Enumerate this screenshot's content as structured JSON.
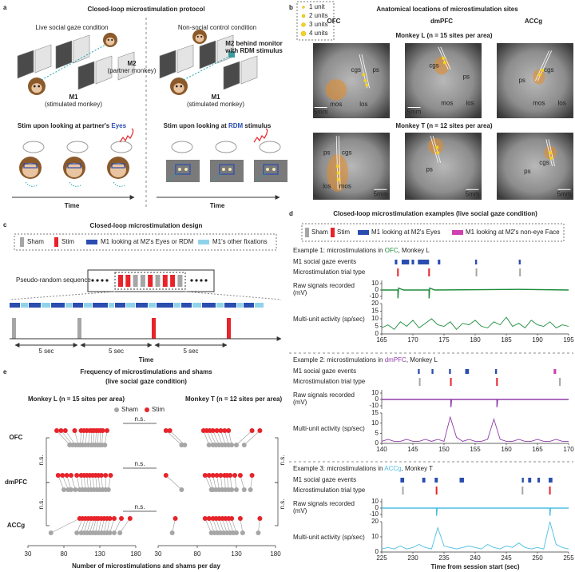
{
  "panel_a": {
    "label": "a",
    "title": "Closed-loop microstimulation protocol",
    "live": {
      "heading": "Live social gaze condition",
      "m2": "M2",
      "m2_note": "(partner monkey)",
      "m1": "M1",
      "m1_note": "(stimulated monkey)",
      "stim_prefix": "Stim upon looking at partner's ",
      "stim_target": "Eyes",
      "time": "Time"
    },
    "control": {
      "heading": "Non-social control condition",
      "m2_line1": "M2 behind monitor",
      "m2_line2": "with RDM stimulus",
      "m1": "M1",
      "m1_note": "(stimulated monkey)",
      "stim_prefix": "Stim upon looking at ",
      "stim_target": "RDM",
      "stim_suffix": " stimulus",
      "time": "Time"
    }
  },
  "panel_b": {
    "label": "b",
    "title": "Anatomical locations of microstimulation sites",
    "legend": [
      "1 unit",
      "2 units",
      "3 units",
      "4 units"
    ],
    "areas": [
      "OFC",
      "dmPFC",
      "ACCg"
    ],
    "area_colors": [
      "#1e8c3c",
      "#8e3da8",
      "#4cbfe3"
    ],
    "monkey_l": "Monkey L (n = 15 sites per area)",
    "monkey_t": "Monkey T (n = 12 sites per area)",
    "images": [
      {
        "labels": [
          "cgs",
          "ps",
          "mos",
          "los",
          "5mm"
        ]
      },
      {
        "labels": [
          "cgs",
          "ps",
          "mos",
          "los",
          "5mm"
        ]
      },
      {
        "labels": [
          "cgs",
          "ps",
          "mos",
          "los"
        ]
      },
      {
        "labels": [
          "ps",
          "cgs",
          "los",
          "mos",
          "5mm"
        ]
      },
      {
        "labels": [
          "ps",
          "5mm"
        ]
      },
      {
        "labels": [
          "ps",
          "cgs",
          "5mm"
        ]
      }
    ]
  },
  "panel_c": {
    "label": "c",
    "title": "Closed-loop microstimulation design",
    "legend": [
      "Sham",
      "Stim",
      "M1 looking at M2's Eyes or RDM",
      "M1's other fixations"
    ],
    "sequence_label": "Pseudo-random sequence",
    "interval": "5 sec",
    "time": "Time"
  },
  "panel_d": {
    "label": "d",
    "title": "Closed-loop microstimulation examples (live social gaze condition)",
    "legend": [
      "Sham",
      "Stim",
      "M1 looking at M2's Eyes",
      "M1 looking at M2's non-eye Face"
    ],
    "row_labels": [
      "M1 social gaze events",
      "Microstimulation trial type",
      "Raw signals recorded",
      "(mV)",
      "Multi-unit activity (sp/sec)"
    ],
    "x_label": "Time from session start (sec)"
  },
  "panel_e": {
    "label": "e"
  },
  "chart_data": [
    {
      "type": "line",
      "title_prefix": "Example 1: microstimulations in ",
      "area": "OFC",
      "title_suffix": ", Monkey L",
      "color": "#1e8c3c",
      "xlim": [
        165,
        195
      ],
      "xticks": [
        165,
        170,
        175,
        180,
        185,
        190,
        195
      ],
      "gaze_events": [
        [
          167.1,
          167.5
        ],
        [
          168.2,
          169.4
        ],
        [
          169.8,
          170.2
        ],
        [
          170.8,
          172.6
        ],
        [
          174.0,
          174.4
        ],
        [
          180.0,
          180.3
        ],
        [
          187.0,
          187.3
        ]
      ],
      "nonface_events": [],
      "stim_times": [
        167.6,
        172.6
      ],
      "sham_times": [
        180.2,
        187.2
      ],
      "raw": {
        "x": [
          165,
          167.6,
          167.6,
          167.7,
          168.5,
          172.6,
          172.6,
          172.7,
          173.5,
          187,
          195
        ],
        "values": [
          0,
          0,
          -13,
          3,
          0,
          0,
          -13,
          3,
          0,
          1,
          0
        ],
        "ylim": [
          -15,
          15
        ],
        "yticks": [
          -10,
          0,
          10
        ]
      },
      "mua": {
        "x": [
          165,
          166,
          167,
          168,
          169,
          170,
          171,
          172,
          173,
          174,
          175,
          176,
          177,
          178,
          179,
          180,
          181,
          182,
          183,
          184,
          185,
          186,
          187,
          188,
          189,
          190,
          191,
          192,
          193,
          194,
          195
        ],
        "values": [
          4,
          6,
          3,
          8,
          5,
          9,
          4,
          7,
          10,
          6,
          5,
          8,
          3,
          7,
          6,
          9,
          5,
          4,
          8,
          6,
          11,
          5,
          7,
          4,
          9,
          6,
          5,
          8,
          4,
          6,
          5
        ],
        "ylim": [
          0,
          20
        ],
        "yticks": [
          0,
          5,
          10,
          15,
          20
        ]
      }
    },
    {
      "type": "line",
      "title_prefix": "Example 2: microstimulations in ",
      "area": "dmPFC",
      "title_suffix": ", Monkey L",
      "color": "#8e3da8",
      "xlim": [
        140,
        170
      ],
      "xticks": [
        140,
        145,
        150,
        155,
        160,
        165,
        170
      ],
      "gaze_events": [
        [
          145.8,
          146.1
        ],
        [
          148.0,
          148.3
        ],
        [
          150.8,
          151.1
        ],
        [
          153.4,
          154.0
        ],
        [
          158.2,
          158.5
        ]
      ],
      "nonface_events": [
        [
          167.6,
          168.0
        ]
      ],
      "stim_times": [
        151.1,
        158.5
      ],
      "sham_times": [
        146.1,
        168.6
      ],
      "raw": {
        "x": [
          140,
          151.1,
          151.1,
          151.2,
          158.5,
          158.5,
          158.6,
          170
        ],
        "values": [
          0,
          0,
          -12,
          0,
          0,
          -12,
          0,
          0
        ],
        "ylim": [
          -15,
          15
        ],
        "yticks": [
          -10,
          0,
          10
        ]
      },
      "mua": {
        "x": [
          140,
          141,
          142,
          143,
          144,
          145,
          146,
          147,
          148,
          149,
          150,
          151,
          152,
          153,
          154,
          155,
          156,
          157,
          158,
          159,
          160,
          161,
          162,
          163,
          164,
          165,
          166,
          167,
          168,
          169,
          170
        ],
        "values": [
          1,
          2,
          1,
          1,
          2,
          1,
          1,
          2,
          1,
          2,
          1,
          13,
          3,
          1,
          2,
          1,
          1,
          2,
          12,
          2,
          1,
          1,
          2,
          1,
          1,
          2,
          1,
          1,
          2,
          1,
          1
        ],
        "ylim": [
          0,
          15
        ],
        "yticks": [
          0,
          5,
          10,
          15
        ]
      }
    },
    {
      "type": "line",
      "title_prefix": "Example 3: microstimulations in ",
      "area": "ACCg",
      "title_suffix": ", Monkey T",
      "color": "#4cbfe3",
      "xlim": [
        225,
        255
      ],
      "xticks": [
        225,
        230,
        235,
        240,
        245,
        250,
        255
      ],
      "gaze_events": [
        [
          228.0,
          228.6
        ],
        [
          231.5,
          232.0
        ],
        [
          233.5,
          234.0
        ],
        [
          237.5,
          238.2
        ],
        [
          247.5,
          247.8
        ],
        [
          248.5,
          249.0
        ],
        [
          250.0,
          250.4
        ],
        [
          251.8,
          252.4
        ]
      ],
      "nonface_events": [],
      "stim_times": [
        233.8,
        252.0
      ],
      "sham_times": [
        228.4,
        247.6
      ],
      "raw": {
        "x": [
          225,
          233.8,
          233.8,
          233.9,
          252.0,
          252.0,
          252.1,
          255
        ],
        "values": [
          0,
          0,
          -12,
          0,
          0,
          -12,
          0,
          0
        ],
        "ylim": [
          -15,
          15
        ],
        "yticks": [
          -10,
          0,
          10
        ]
      },
      "mua": {
        "x": [
          225,
          226,
          227,
          228,
          229,
          230,
          231,
          232,
          233,
          234,
          235,
          236,
          237,
          238,
          239,
          240,
          241,
          242,
          243,
          244,
          245,
          246,
          247,
          248,
          249,
          250,
          251,
          252,
          253,
          254,
          255
        ],
        "values": [
          2,
          3,
          2,
          4,
          2,
          3,
          5,
          3,
          2,
          16,
          4,
          3,
          2,
          3,
          4,
          3,
          2,
          5,
          3,
          2,
          4,
          3,
          6,
          3,
          2,
          3,
          2,
          20,
          5,
          3,
          2
        ],
        "ylim": [
          0,
          20
        ],
        "yticks": [
          0,
          10,
          20
        ]
      }
    },
    {
      "type": "dot",
      "title_line1": "Frequency of microstimulations and shams",
      "title_line2": "(live social gaze condition)",
      "monkeys": [
        "Monkey L (n = 15 sites per area)",
        "Monkey T (n = 12 sites per area)"
      ],
      "legend": [
        "Sham",
        "Stim"
      ],
      "sham_color": "#a6a6a6",
      "stim_color": "#e8232a",
      "areas": [
        "OFC",
        "dmPFC",
        "ACCg"
      ],
      "area_colors": [
        "#1e8c3c",
        "#8e3da8",
        "#4cbfe3"
      ],
      "groups": [
        [
          {
            "sham": [
              88,
              92,
              96,
              100,
              103,
              106,
              110,
              114,
              118,
              121,
              124,
              127,
              130,
              133,
              137
            ],
            "stim": [
              70,
              76,
              82,
              95,
              104,
              108,
              112,
              116,
              119,
              122,
              125,
              128,
              131,
              134,
              140
            ]
          },
          {
            "sham": [
              60,
              64,
              95,
              100,
              104,
              108,
              112,
              116,
              120,
              124,
              130,
              140
            ],
            "stim": [
              40,
              45,
              88,
              92,
              96,
              100,
              105,
              110,
              115,
              120,
              150,
              160
            ]
          }
        ],
        [
          {
            "sham": [
              80,
              86,
              90,
              96,
              102,
              106,
              110,
              114,
              118,
              122,
              126,
              130,
              134,
              138,
              142
            ],
            "stim": [
              72,
              78,
              84,
              90,
              98,
              104,
              108,
              112,
              116,
              120,
              124,
              128,
              132,
              138,
              145
            ]
          },
          {
            "sham": [
              60,
              98,
              100,
              104,
              108,
              112,
              116,
              120,
              124,
              130,
              140,
              148
            ],
            "stim": [
              40,
              90,
              95,
              100,
              105,
              110,
              115,
              118,
              122,
              128,
              135,
              150
            ]
          }
        ],
        [
          {
            "sham": [
              62,
              98,
              104,
              108,
              112,
              116,
              120,
              124,
              128,
              132,
              136,
              140,
              144,
              150,
              158
            ],
            "stim": [
              102,
              106,
              110,
              114,
              118,
              122,
              125,
              128,
              132,
              136,
              140,
              144,
              150,
              160,
              172
            ]
          },
          {
            "sham": [
              48,
              98,
              102,
              106,
              110,
              114,
              118,
              122,
              126,
              130,
              138,
              158
            ],
            "stim": [
              52,
              90,
              95,
              100,
              104,
              108,
              112,
              116,
              120,
              124,
              135,
              160
            ]
          }
        ]
      ],
      "xlim": [
        30,
        180
      ],
      "xticks": [
        30,
        80,
        130,
        180
      ],
      "ns": "n.s.",
      "x_label": "Number of microstimulations and shams per day"
    }
  ]
}
